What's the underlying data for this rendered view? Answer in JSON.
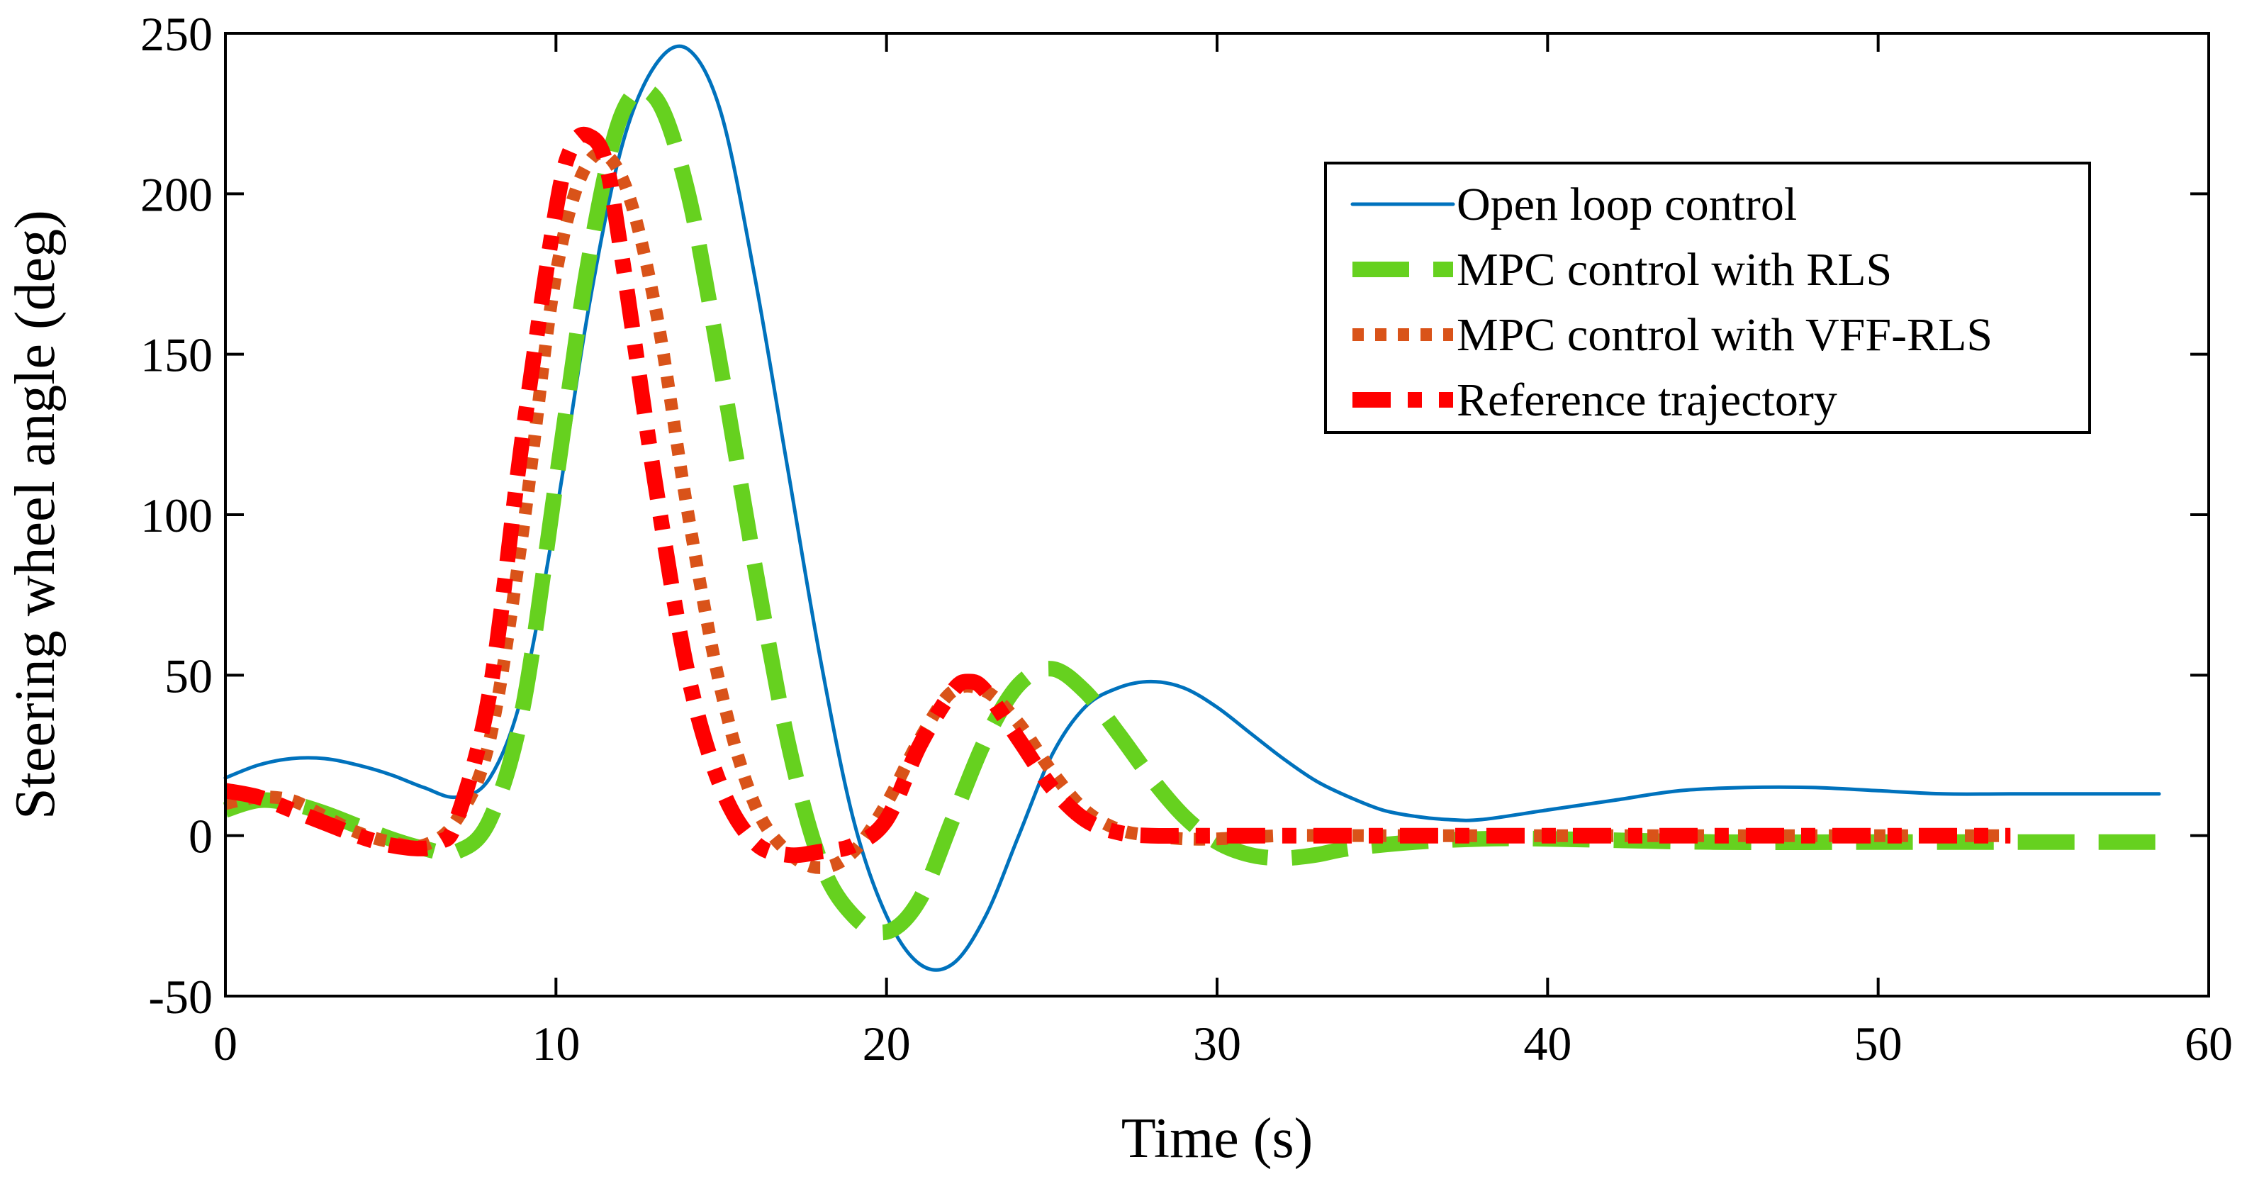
{
  "chart_data": {
    "type": "line",
    "title": "",
    "xlabel": "Time (s)",
    "ylabel": "Steering wheel angle (deg)",
    "xlim": [
      0,
      60
    ],
    "ylim": [
      -50,
      250
    ],
    "xticks": [
      0,
      10,
      20,
      30,
      40,
      50,
      60
    ],
    "yticks": [
      -50,
      0,
      50,
      100,
      150,
      200,
      250
    ],
    "grid": false,
    "legend_position": "top-right",
    "series": [
      {
        "name": "Open loop control",
        "color": "#0072BD",
        "style": "solid",
        "x": [
          0,
          1,
          2,
          3,
          4,
          5,
          6,
          7,
          8,
          9,
          10,
          11,
          12,
          13,
          14,
          15,
          16,
          17,
          18,
          19,
          20,
          21,
          22,
          23,
          24,
          25,
          26,
          27,
          28,
          29,
          30,
          31,
          32,
          33,
          34,
          35,
          36,
          37,
          38,
          40,
          42,
          44,
          46,
          48,
          50,
          52,
          54,
          56,
          58.5
        ],
        "y": [
          18,
          22,
          24,
          24,
          22,
          19,
          15,
          12,
          18,
          45,
          100,
          165,
          215,
          240,
          245,
          225,
          175,
          115,
          55,
          5,
          -25,
          -40,
          -40,
          -25,
          0,
          25,
          40,
          46,
          48,
          46,
          40,
          32,
          24,
          17,
          12,
          8,
          6,
          5,
          5,
          8,
          11,
          14,
          15,
          15,
          14,
          13,
          13,
          13,
          13
        ]
      },
      {
        "name": "MPC control with RLS",
        "color": "#66D11F",
        "style": "dashed",
        "x": [
          0,
          1,
          2,
          3,
          4,
          5,
          6,
          7,
          8,
          9,
          10,
          11,
          12,
          13,
          14,
          15,
          16,
          17,
          18,
          19,
          20,
          21,
          22,
          23,
          24,
          25,
          26,
          27,
          28,
          29,
          30,
          31,
          32,
          33,
          34,
          36,
          38,
          40,
          45,
          50,
          55,
          58.5
        ],
        "y": [
          8,
          11,
          10,
          7,
          3,
          -1,
          -4,
          -5,
          5,
          40,
          110,
          180,
          225,
          230,
          200,
          145,
          85,
          30,
          -8,
          -25,
          -30,
          -20,
          5,
          30,
          47,
          52,
          45,
          32,
          18,
          6,
          -2,
          -6,
          -7,
          -6,
          -4,
          -2,
          -1,
          -1,
          -2,
          -2,
          -2,
          -2
        ]
      },
      {
        "name": "MPC control with VFF-RLS",
        "color": "#D95319",
        "style": "dotted",
        "x": [
          0,
          1,
          2,
          3,
          4,
          5,
          6,
          7,
          8,
          9,
          10,
          11,
          12,
          13,
          14,
          15,
          16,
          17,
          18,
          19,
          20,
          21,
          22,
          23,
          24,
          25,
          26,
          27,
          28,
          29,
          30,
          32,
          35,
          40,
          45,
          50,
          54
        ],
        "y": [
          10,
          12,
          11,
          6,
          1,
          -2,
          -3,
          5,
          30,
          95,
          175,
          210,
          205,
          165,
          100,
          45,
          10,
          -5,
          -10,
          -5,
          10,
          30,
          45,
          45,
          35,
          20,
          8,
          2,
          0,
          -1,
          -1,
          0,
          0,
          0,
          0,
          0,
          0
        ]
      },
      {
        "name": "Reference trajectory",
        "color": "#FF0000",
        "style": "dashdot",
        "x": [
          0,
          1,
          2,
          3,
          4,
          5,
          6,
          6.5,
          7,
          8,
          9,
          10,
          10.5,
          11,
          11.5,
          12,
          13,
          14,
          15,
          16,
          17,
          18,
          19,
          20,
          21,
          22,
          22.5,
          23,
          24,
          25,
          26,
          27,
          28,
          30,
          35,
          40,
          45,
          50,
          54
        ],
        "y": [
          14,
          12,
          8,
          4,
          0,
          -3,
          -4,
          -2,
          5,
          45,
          125,
          195,
          215,
          218,
          210,
          180,
          110,
          50,
          15,
          -2,
          -6,
          -5,
          -3,
          5,
          28,
          45,
          48,
          45,
          30,
          15,
          5,
          1,
          0,
          0,
          0,
          0,
          0,
          0,
          0
        ]
      }
    ]
  }
}
